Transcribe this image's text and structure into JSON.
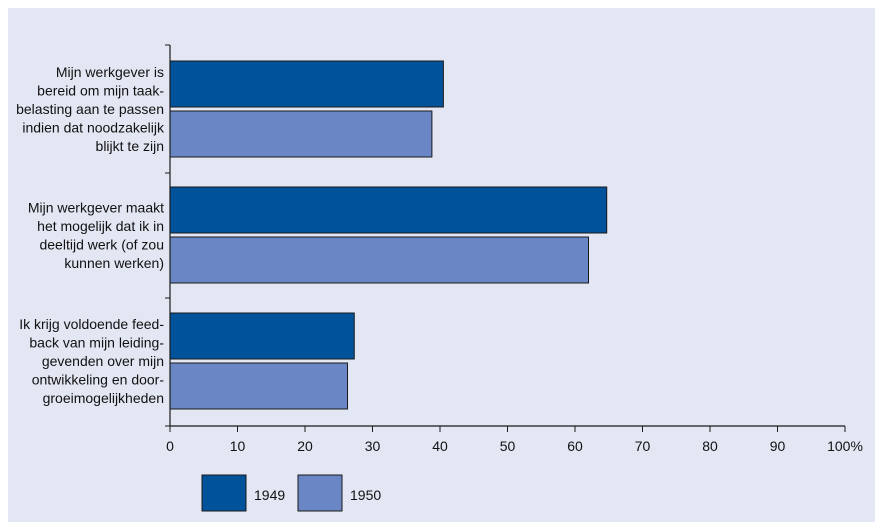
{
  "chart_data": {
    "type": "bar",
    "orientation": "horizontal",
    "categories": [
      [
        "Mijn werkgever is",
        "bereid om mijn taak-",
        "belasting aan te passen",
        "indien dat noodzakelijk",
        "blijkt te zijn"
      ],
      [
        "Mijn werkgever maakt",
        "het mogelijk dat ik in",
        "deeltijd werk (of zou",
        "kunnen werken)"
      ],
      [
        "Ik krijg voldoende feed-",
        "back van mijn leiding-",
        "gevenden over mijn",
        "ontwikkeling en door-",
        "groeimogelijkheden"
      ]
    ],
    "series": [
      {
        "name": "1949",
        "color": "#00529b",
        "values": [
          40.5,
          64.7,
          27.3
        ]
      },
      {
        "name": "1950",
        "color": "#6b86c4",
        "values": [
          38.8,
          62.0,
          26.3
        ]
      }
    ],
    "xlim": [
      0,
      100
    ],
    "xticks": [
      "0",
      "10",
      "20",
      "30",
      "40",
      "50",
      "60",
      "70",
      "80",
      "90",
      "100%"
    ],
    "grid": false,
    "legend": "bottom-left",
    "background": "#e3e7f3"
  }
}
